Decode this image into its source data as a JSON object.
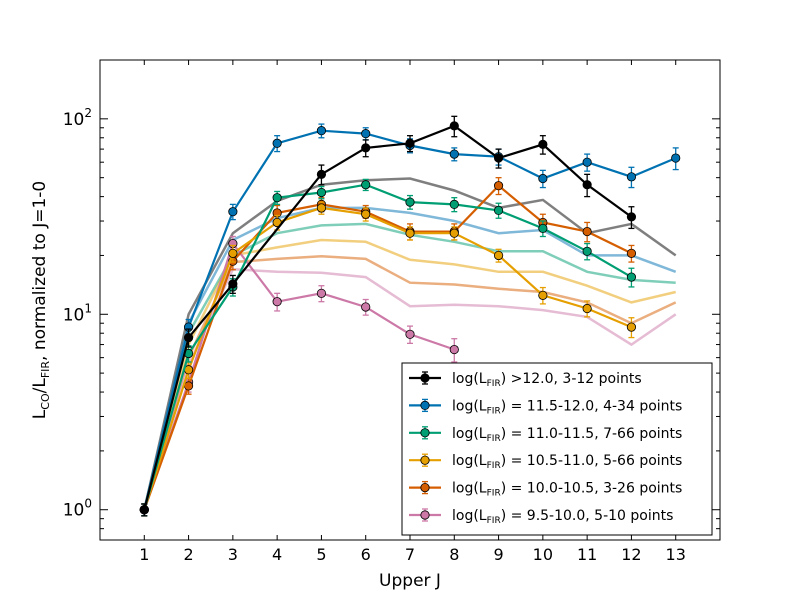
{
  "chart_data": {
    "type": "line",
    "xlabel": "Upper J",
    "ylabel_parts": {
      "l1": "L",
      "co": "CO",
      "slash": "/L",
      "fir": "FIR",
      "rest": ", normalized to J=1-0"
    },
    "y_scale": "log",
    "xlim": [
      0,
      14
    ],
    "ylim": [
      0.7,
      200
    ],
    "x_ticks": [
      1,
      2,
      3,
      4,
      5,
      6,
      7,
      8,
      9,
      10,
      11,
      12,
      13
    ],
    "y_ticks": [
      {
        "value": 1,
        "base": "10",
        "exp": "0"
      },
      {
        "value": 10,
        "base": "10",
        "exp": "1"
      },
      {
        "value": 100,
        "base": "10",
        "exp": "2"
      }
    ],
    "legend_location": "lower-right",
    "series": [
      {
        "label_range": ">12.0, 3-12 points",
        "color": "#000000",
        "x": [
          1,
          2,
          3,
          5,
          6,
          7,
          8,
          9,
          10,
          11,
          12
        ],
        "y": [
          1.0,
          7.6,
          14.3,
          52,
          71,
          75,
          92,
          63,
          74,
          46,
          31.5
        ],
        "err": [
          0.07,
          0.8,
          1.5,
          6,
          7,
          7,
          11,
          7,
          8,
          6,
          4
        ],
        "band_x": [
          1,
          2,
          3,
          4,
          5,
          6,
          7,
          8,
          9,
          10,
          11,
          12,
          13
        ],
        "band_y": [
          1.0,
          10,
          26,
          38,
          46,
          48.5,
          49.5,
          43,
          35,
          38.5,
          26,
          29,
          20
        ]
      },
      {
        "label_range": "= 11.5-12.0, 4-34 points",
        "color": "#0072b2",
        "x": [
          1,
          2,
          3,
          4,
          5,
          6,
          7,
          8,
          9,
          10,
          11,
          12,
          13
        ],
        "y": [
          1.0,
          8.6,
          33.5,
          75,
          87,
          84,
          73,
          66,
          64,
          49.5,
          60,
          50.5,
          63
        ],
        "err": [
          0.07,
          0.8,
          3,
          7,
          7,
          6,
          6,
          5,
          6,
          5,
          6,
          6,
          8
        ],
        "band_x": [
          1,
          2,
          3,
          4,
          5,
          6,
          7,
          8,
          9,
          10,
          11,
          12,
          13
        ],
        "band_y": [
          1.0,
          9,
          24,
          31,
          35,
          35,
          33,
          30,
          26,
          27,
          20,
          20,
          16.5
        ]
      },
      {
        "label_range": "= 11.0-11.5, 7-66 points",
        "color": "#009e73",
        "x": [
          1,
          2,
          3,
          4,
          5,
          6,
          7,
          8,
          9,
          10,
          11,
          12
        ],
        "y": [
          1.0,
          6.3,
          13.8,
          39.5,
          42,
          46,
          37.5,
          36.5,
          34,
          27.5,
          21,
          15.5
        ],
        "err": [
          0.07,
          0.6,
          1.4,
          3,
          3,
          3,
          3,
          3,
          3,
          2.5,
          2,
          1.7
        ],
        "band_x": [
          1,
          2,
          3,
          4,
          5,
          6,
          7,
          8,
          9,
          10,
          11,
          12,
          13
        ],
        "band_y": [
          1.0,
          8,
          20,
          26,
          28.5,
          29,
          25.5,
          23.5,
          21,
          21,
          16.5,
          15,
          14.5
        ]
      },
      {
        "label_range": "= 10.5-11.0, 5-66 points",
        "color": "#e69f00",
        "x": [
          1,
          2,
          3,
          4,
          5,
          6,
          7,
          8,
          9,
          10,
          11,
          12
        ],
        "y": [
          1.0,
          5.2,
          20.5,
          29.5,
          35,
          32.5,
          26,
          26,
          20,
          12.5,
          10.7,
          8.6
        ],
        "err": [
          0.07,
          0.5,
          2,
          2.5,
          2.5,
          2.5,
          2,
          2,
          1.5,
          1.2,
          1.0,
          1.0
        ],
        "band_x": [
          1,
          2,
          3,
          4,
          5,
          6,
          7,
          8,
          9,
          10,
          11,
          12,
          13
        ],
        "band_y": [
          1.0,
          7,
          20,
          22,
          24,
          23.5,
          19,
          18,
          16.5,
          16.5,
          14,
          11.5,
          13
        ]
      },
      {
        "label_range": "= 10.0-10.5, 3-26 points",
        "color": "#d55e00",
        "x": [
          1,
          2,
          3,
          4,
          5,
          6,
          7,
          8,
          9,
          10,
          11,
          12
        ],
        "y": [
          1.0,
          4.3,
          18.7,
          33,
          36.5,
          33.5,
          26.5,
          26.5,
          45.5,
          29.5,
          26.5,
          20.5
        ],
        "err": [
          0.07,
          0.4,
          1.8,
          3,
          3,
          2.5,
          2.5,
          2.5,
          4.5,
          3,
          3,
          2
        ],
        "band_x": [
          1,
          2,
          3,
          4,
          5,
          6,
          7,
          8,
          9,
          10,
          11,
          12,
          13
        ],
        "band_y": [
          1.0,
          6,
          18.5,
          19.2,
          19.8,
          19.2,
          14.5,
          14.2,
          13.5,
          13,
          11.5,
          9,
          11.5
        ]
      },
      {
        "label_range": "= 9.5-10.0, 5-10 points",
        "color": "#cc79a7",
        "x": [
          1,
          2,
          3,
          4,
          5,
          6,
          7,
          8
        ],
        "y": [
          1.0,
          4.5,
          23,
          11.6,
          12.8,
          10.9,
          7.9,
          6.6
        ],
        "err": [
          0.07,
          0.5,
          2,
          1.2,
          1.2,
          1.0,
          0.8,
          0.9
        ],
        "band_x": [
          1,
          2,
          3,
          4,
          5,
          6,
          7,
          8,
          9,
          10,
          11,
          12,
          13
        ],
        "band_y": [
          1.0,
          5.5,
          17,
          16.5,
          16.3,
          15.5,
          11,
          11.2,
          11,
          10.5,
          9.7,
          7,
          10
        ]
      }
    ]
  }
}
